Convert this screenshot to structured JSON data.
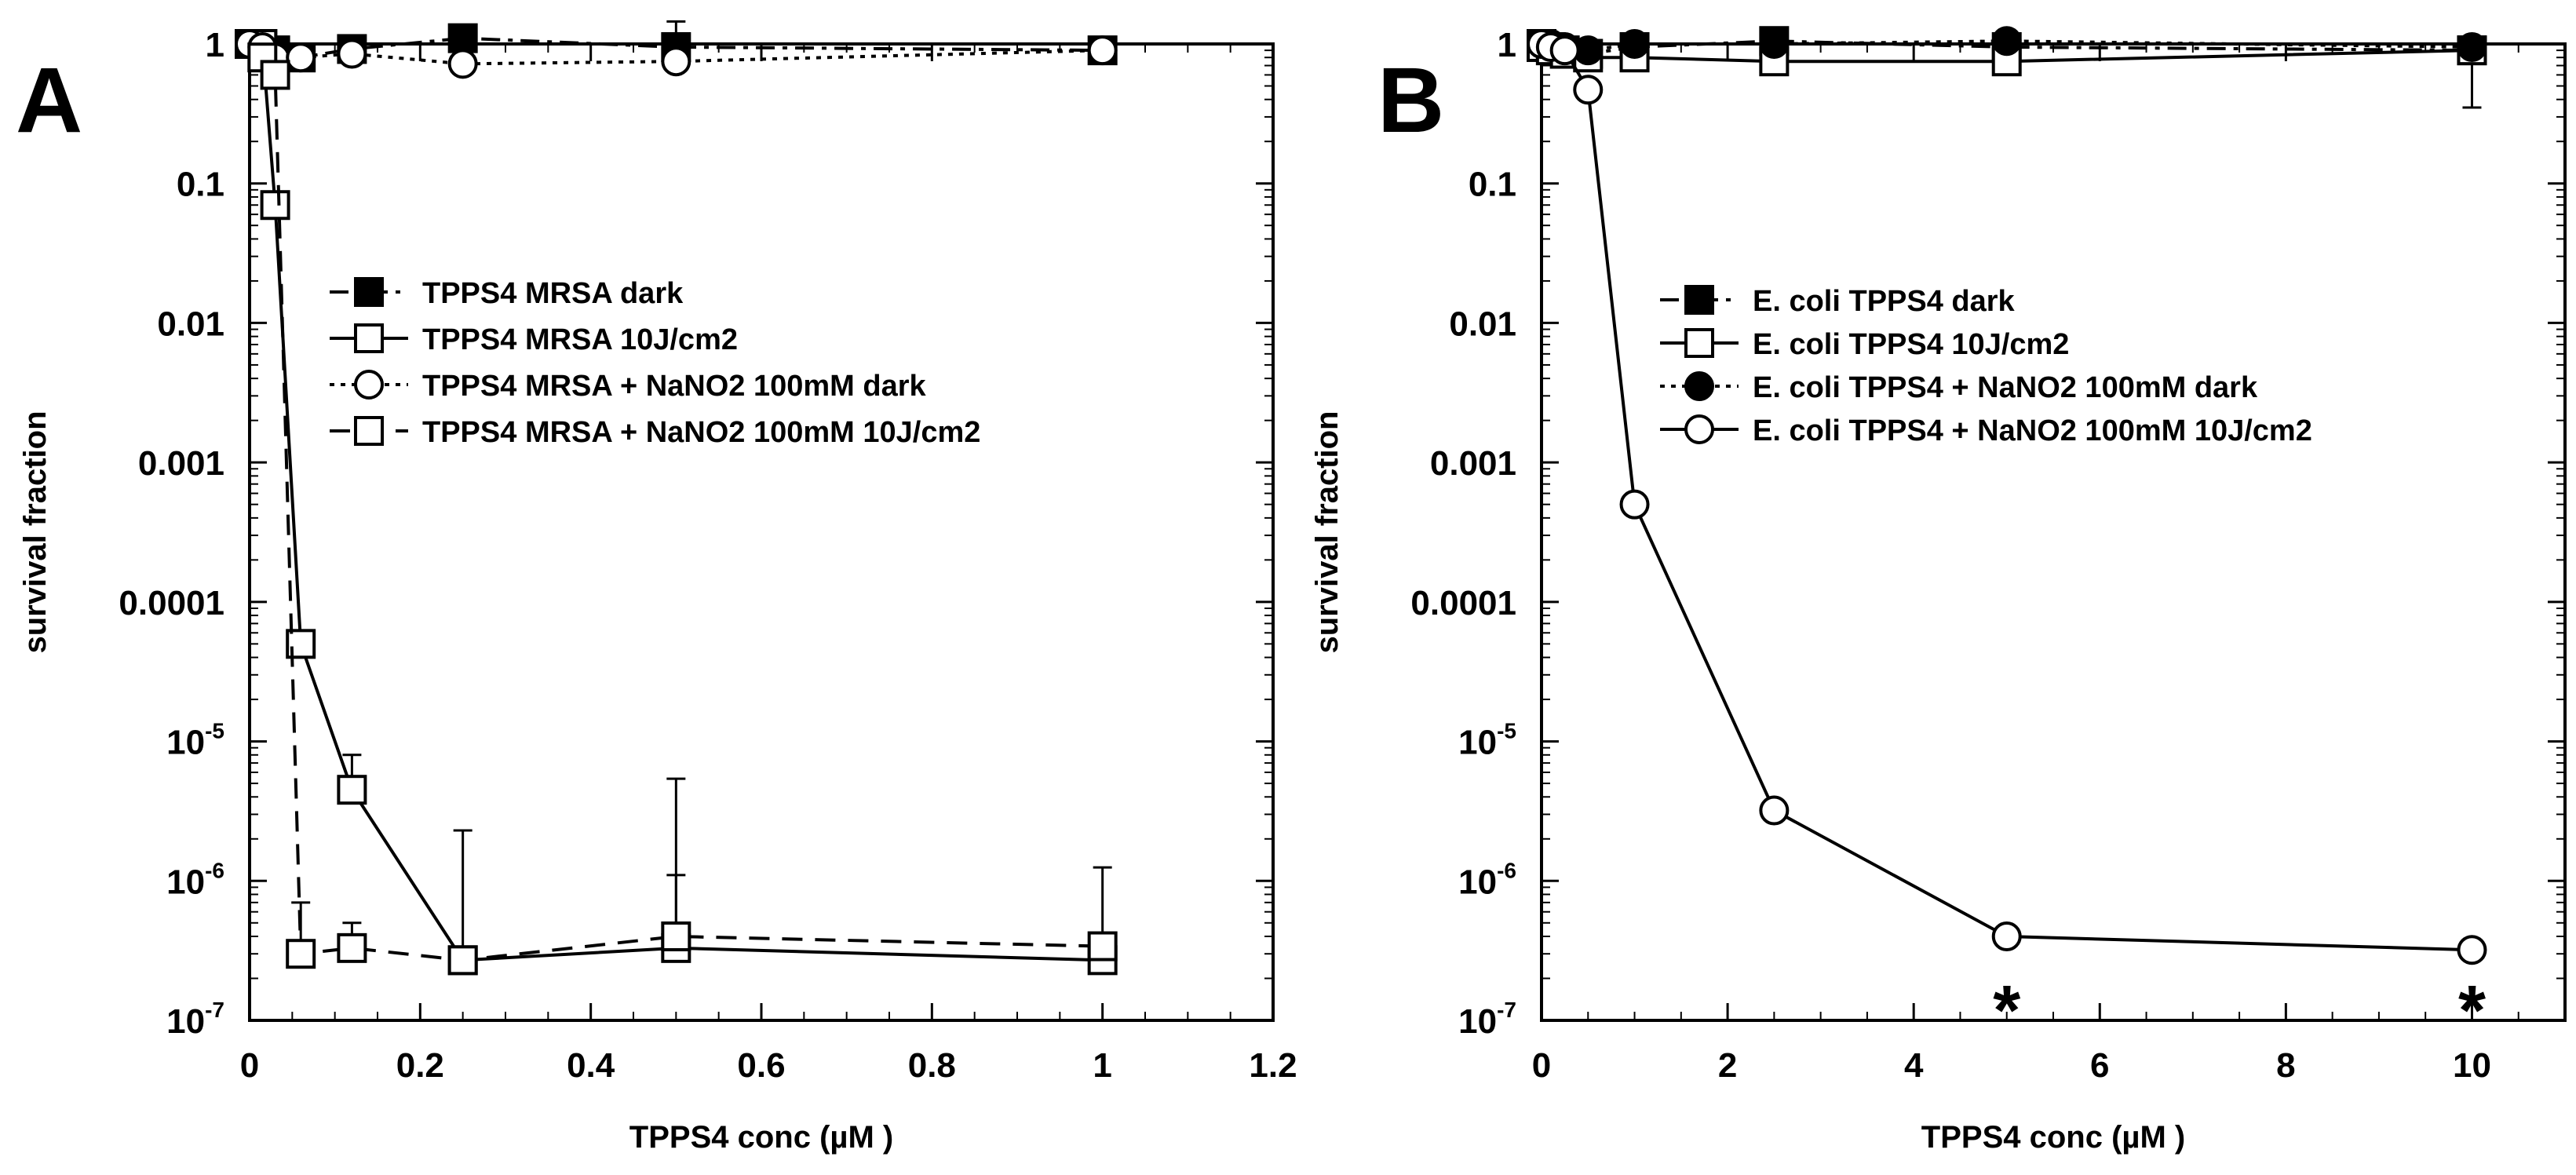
{
  "chart_data": [
    {
      "panel": "A",
      "type": "scatter",
      "xlabel": "TPPS4 conc (µM )",
      "ylabel": "survival fraction",
      "xlim": [
        0,
        1.2
      ],
      "ylim": [
        1e-07,
        1
      ],
      "yscale": "log",
      "xticks": [
        0,
        0.2,
        0.4,
        0.6,
        0.8,
        1,
        1.2
      ],
      "xtick_labels": [
        "0",
        "0.2",
        "0.4",
        "0.6",
        "0.8",
        "1",
        "1.2"
      ],
      "yticks": [
        1,
        0.1,
        0.01,
        0.001,
        0.0001,
        1e-05,
        1e-06,
        1e-07
      ],
      "ytick_labels": [
        {
          "base": "1",
          "exp": ""
        },
        {
          "base": "0.1",
          "exp": ""
        },
        {
          "base": "0.01",
          "exp": ""
        },
        {
          "base": "0.001",
          "exp": ""
        },
        {
          "base": "0.0001",
          "exp": ""
        },
        {
          "base": "10",
          "exp": "-5"
        },
        {
          "base": "10",
          "exp": "-6"
        },
        {
          "base": "10",
          "exp": "-7"
        }
      ],
      "legend_position": "upper-middle",
      "series": [
        {
          "name": "TPPS4 MRSA dark",
          "marker": "square-filled",
          "line": "dashdot",
          "x": [
            0,
            0.015,
            0.03,
            0.06,
            0.12,
            0.25,
            0.5,
            1
          ],
          "y": [
            1,
            1,
            0.9,
            0.8,
            0.92,
            1.1,
            0.95,
            0.9
          ],
          "err": [
            null,
            null,
            null,
            null,
            null,
            null,
            1.45,
            null
          ]
        },
        {
          "name": "TPPS4 MRSA 10J/cm2",
          "marker": "square-open",
          "line": "solid",
          "x": [
            0.015,
            0.03,
            0.06,
            0.12,
            0.25,
            0.5,
            1
          ],
          "y": [
            1,
            0.07,
            5e-05,
            4.5e-06,
            2.7e-07,
            3.3e-07,
            2.7e-07
          ],
          "err": [
            null,
            null,
            null,
            8e-06,
            2.3e-06,
            1.1e-06,
            1.25e-06
          ]
        },
        {
          "name": "TPPS4 MRSA + NaNO2 100mM dark",
          "marker": "circle-open",
          "line": "dotted",
          "x": [
            0,
            0.015,
            0.03,
            0.06,
            0.12,
            0.25,
            0.5,
            1
          ],
          "y": [
            1,
            0.95,
            0.8,
            0.8,
            0.85,
            0.72,
            0.75,
            0.9
          ],
          "err": [
            null,
            null,
            null,
            null,
            null,
            null,
            null,
            null
          ]
        },
        {
          "name": "TPPS4 MRSA + NaNO2 100mM 10J/cm2",
          "marker": "square-open",
          "line": "dashed",
          "x": [
            0.015,
            0.03,
            0.06,
            0.12,
            0.25,
            0.5,
            1
          ],
          "y": [
            0.8,
            0.6,
            3e-07,
            3.3e-07,
            2.7e-07,
            4e-07,
            3.4e-07
          ],
          "err": [
            null,
            null,
            7e-07,
            5e-07,
            null,
            5.4e-06,
            null
          ]
        }
      ],
      "annotations": []
    },
    {
      "panel": "B",
      "type": "scatter",
      "xlabel": "TPPS4 conc (µM )",
      "ylabel": "survival fraction",
      "xlim": [
        0,
        11
      ],
      "ylim": [
        1e-07,
        1
      ],
      "yscale": "log",
      "xticks": [
        0,
        2,
        4,
        6,
        8,
        10
      ],
      "xtick_labels": [
        "0",
        "2",
        "4",
        "6",
        "8",
        "10"
      ],
      "yticks": [
        1,
        0.1,
        0.01,
        0.001,
        0.0001,
        1e-05,
        1e-06,
        1e-07
      ],
      "ytick_labels": [
        {
          "base": "1",
          "exp": ""
        },
        {
          "base": "0.1",
          "exp": ""
        },
        {
          "base": "0.01",
          "exp": ""
        },
        {
          "base": "0.001",
          "exp": ""
        },
        {
          "base": "0.0001",
          "exp": ""
        },
        {
          "base": "10",
          "exp": "-5"
        },
        {
          "base": "10",
          "exp": "-6"
        },
        {
          "base": "10",
          "exp": "-7"
        }
      ],
      "legend_position": "upper-middle",
      "series": [
        {
          "name": "E. coli TPPS4  dark",
          "marker": "square-filled",
          "line": "dashdot",
          "x": [
            0,
            0.1,
            0.25,
            0.5,
            1,
            2.5,
            5,
            10
          ],
          "y": [
            1,
            0.95,
            0.9,
            0.85,
            0.95,
            1.05,
            0.95,
            0.9
          ],
          "err": [
            null,
            null,
            null,
            null,
            null,
            null,
            null,
            0.35
          ]
        },
        {
          "name": "E. coli TPPS4 10J/cm2",
          "marker": "square-open",
          "line": "solid",
          "x": [
            0,
            0.1,
            0.25,
            0.5,
            1,
            2.5,
            5,
            10
          ],
          "y": [
            0.95,
            0.9,
            0.85,
            0.8,
            0.8,
            0.75,
            0.75,
            0.9
          ],
          "err": [
            null,
            null,
            null,
            null,
            null,
            null,
            null,
            null
          ]
        },
        {
          "name": "E. coli TPPS4 + NaNO2 100mM dark",
          "marker": "circle-filled",
          "line": "dotted",
          "x": [
            0,
            0.1,
            0.25,
            0.5,
            1,
            2.5,
            5,
            10
          ],
          "y": [
            1,
            1,
            0.95,
            0.9,
            1,
            1,
            1.05,
            0.95
          ],
          "err": [
            null,
            null,
            null,
            null,
            null,
            null,
            null,
            null
          ]
        },
        {
          "name": "E. coli TPPS4 + NaNO2 100mM 10J/cm2",
          "marker": "circle-open",
          "line": "solid",
          "x": [
            0,
            0.1,
            0.25,
            0.5,
            1,
            2.5,
            5,
            10
          ],
          "y": [
            1,
            0.95,
            0.9,
            0.47,
            0.0005,
            3.2e-06,
            4e-07,
            3.2e-07
          ],
          "err": [
            null,
            null,
            null,
            null,
            null,
            null,
            null,
            null
          ]
        }
      ],
      "annotations": [
        {
          "text": "*",
          "x": 5,
          "y": 1.55e-07
        },
        {
          "text": "*",
          "x": 10,
          "y": 1.55e-07
        }
      ]
    }
  ]
}
